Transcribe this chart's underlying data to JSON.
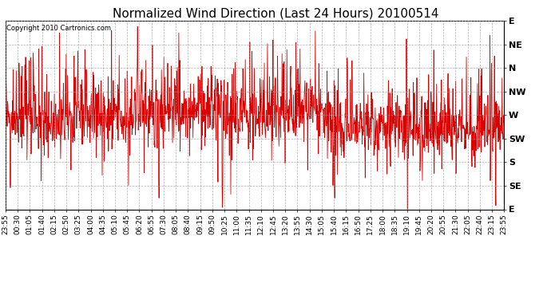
{
  "title": "Normalized Wind Direction (Last 24 Hours) 20100514",
  "copyright_text": "Copyright 2010 Cartronics.com",
  "line_color": "#dd0000",
  "background_color": "#ffffff",
  "grid_color": "#999999",
  "title_fontsize": 11,
  "ylabel_fontsize": 8,
  "tick_fontsize": 6.5,
  "ytick_labels": [
    "E",
    "NE",
    "N",
    "NW",
    "W",
    "SW",
    "S",
    "SE",
    "E"
  ],
  "ytick_values": [
    1.0,
    0.875,
    0.75,
    0.625,
    0.5,
    0.375,
    0.25,
    0.125,
    0.0
  ],
  "x_labels": [
    "23:55",
    "00:30",
    "01:05",
    "01:40",
    "02:15",
    "02:50",
    "03:25",
    "04:00",
    "04:35",
    "05:10",
    "05:45",
    "06:20",
    "06:55",
    "07:30",
    "08:05",
    "08:40",
    "09:15",
    "09:50",
    "10:25",
    "11:00",
    "11:35",
    "12:10",
    "12:45",
    "13:20",
    "13:55",
    "14:30",
    "15:05",
    "15:40",
    "16:15",
    "16:50",
    "17:25",
    "18:00",
    "18:35",
    "19:10",
    "19:45",
    "20:20",
    "20:55",
    "21:30",
    "22:05",
    "22:40",
    "23:15",
    "23:55"
  ],
  "ylim": [
    0.0,
    1.0
  ],
  "num_points": 1440,
  "seed": 42
}
